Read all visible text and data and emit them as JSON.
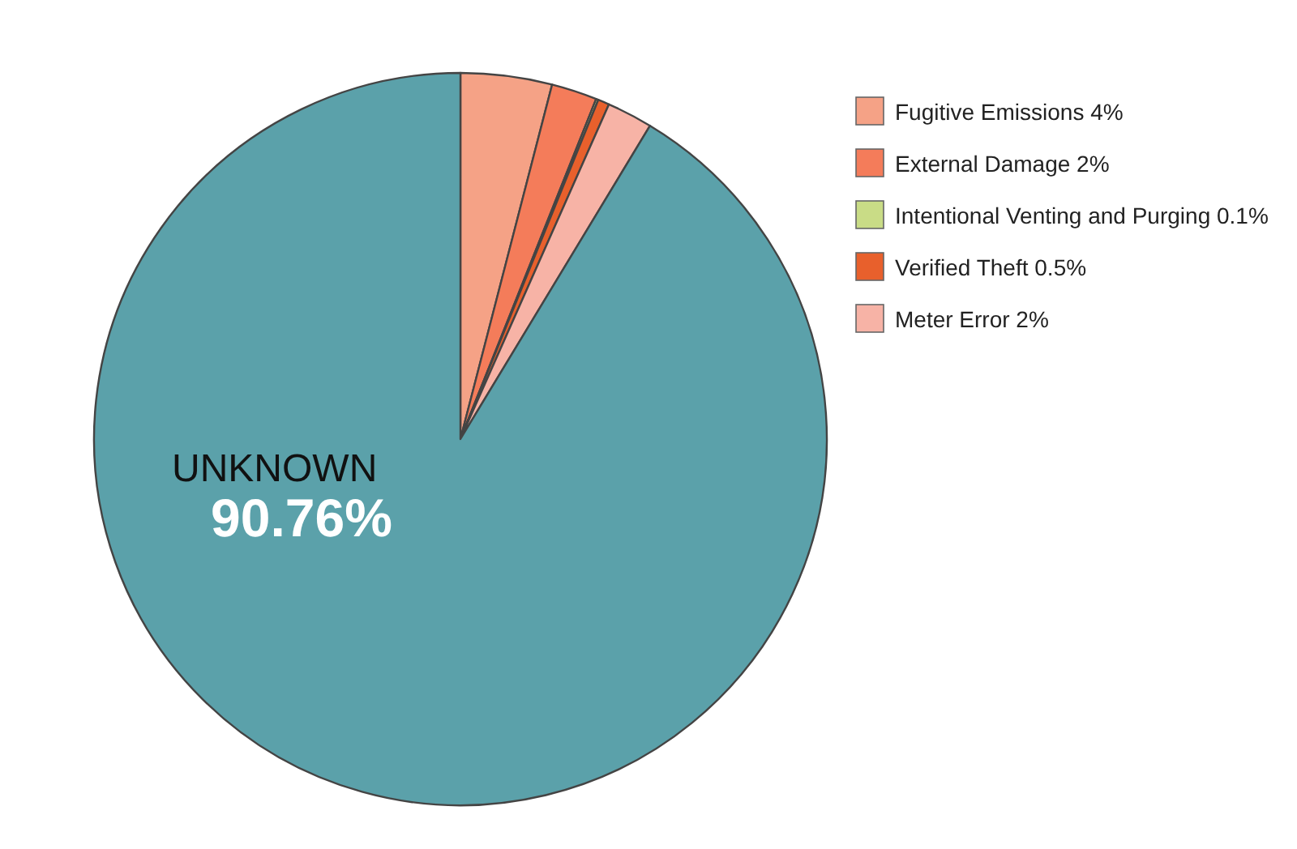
{
  "chart_data": {
    "type": "pie",
    "categories": [
      "Fugitive Emissions",
      "External Damage",
      "Intentional Venting and Purging",
      "Verified Theft",
      "Meter Error",
      "UNKNOWN"
    ],
    "values": [
      4,
      2,
      0.1,
      0.5,
      2,
      90.76
    ],
    "colors": [
      "#f5a286",
      "#f47c5a",
      "#c9dc86",
      "#e8602c",
      "#f7b3a6",
      "#5ba1aa"
    ],
    "value_labels": [
      "4%",
      "2%",
      "0.1%",
      "0.5%",
      "2%",
      "90.76%"
    ],
    "legend": "top right"
  }
}
